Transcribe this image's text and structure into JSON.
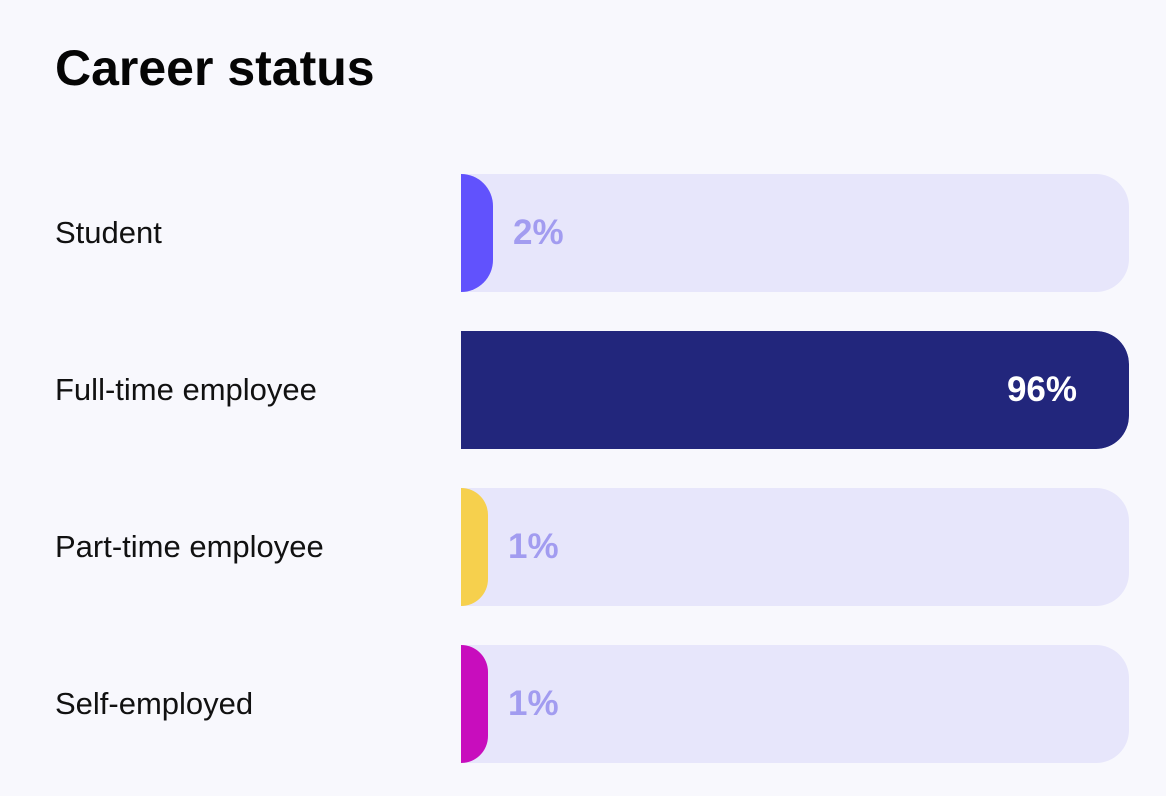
{
  "chart_data": {
    "type": "bar",
    "orientation": "horizontal",
    "title": "Career status",
    "categories": [
      "Student",
      "Full-time employee",
      "Part-time employee",
      "Self-employed"
    ],
    "values": [
      2,
      96,
      1,
      1
    ],
    "value_labels": [
      "2%",
      "96%",
      "1%",
      "1%"
    ],
    "colors": [
      "#6152fd",
      "#22267c",
      "#f6d04d",
      "#c80dbd"
    ],
    "track_color": "#e7e6fb",
    "outside_label_color": "#a29cf0",
    "inside_label_color": "#ffffff",
    "xlim": [
      0,
      100
    ],
    "grid": false,
    "legend": "none"
  }
}
